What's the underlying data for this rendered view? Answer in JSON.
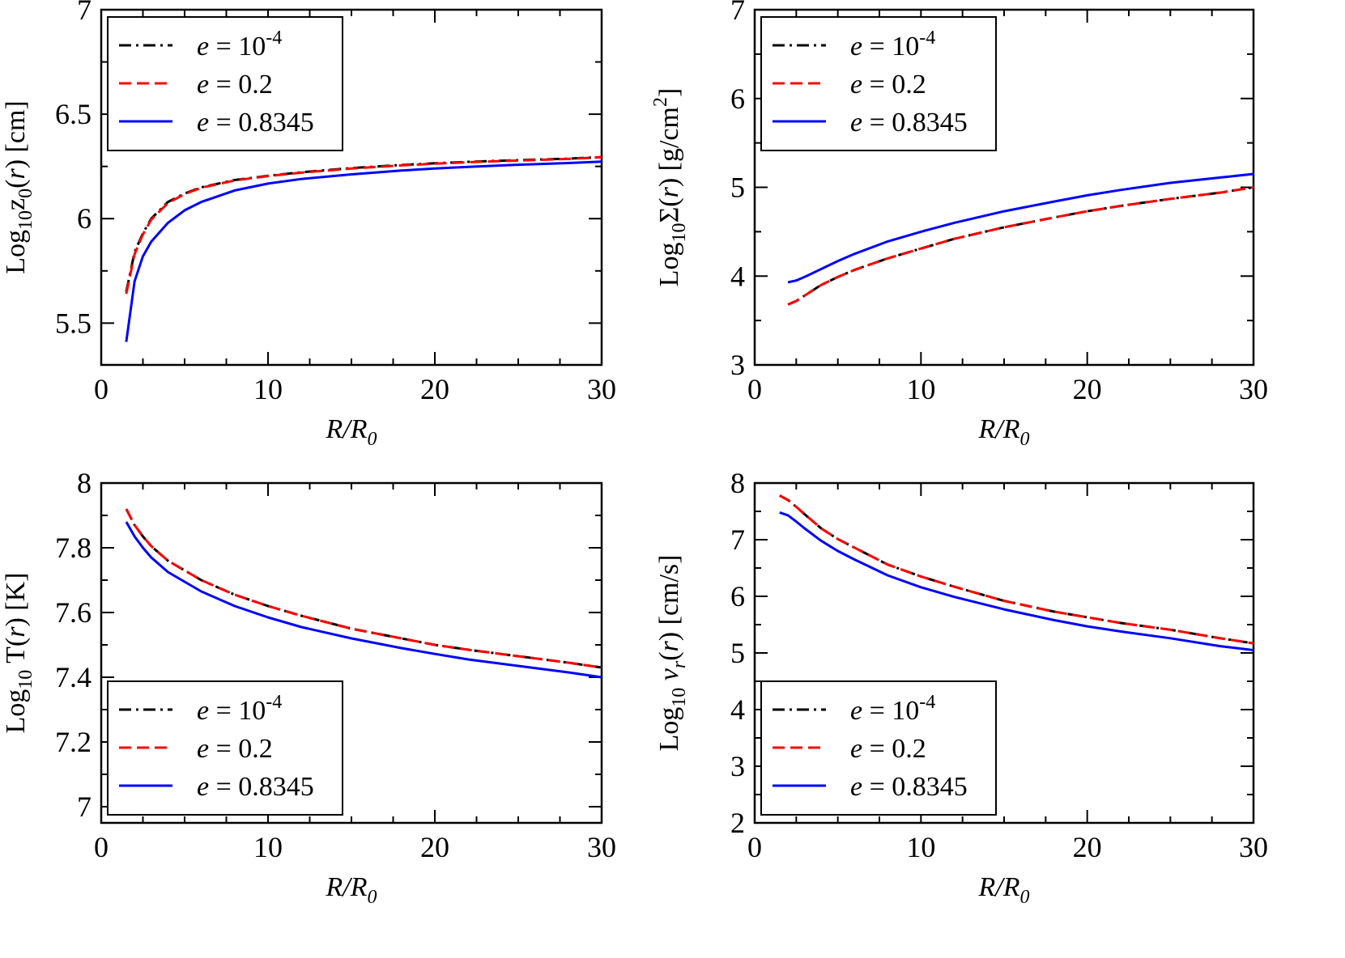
{
  "chart_data": [
    {
      "id": "z0",
      "type": "line",
      "title": "",
      "xlabel": "R/R0",
      "xlabel_parts": [
        {
          "t": "R/R",
          "style": "italic"
        },
        {
          "t": "0",
          "style": "italic-sub"
        }
      ],
      "ylabel": "Log10z0(r) [cm]",
      "ylabel_parts": [
        {
          "t": "Log"
        },
        {
          "t": "10",
          "style": "sub"
        },
        {
          "t": "z"
        },
        {
          "t": "0",
          "style": "sub"
        },
        {
          "t": "("
        },
        {
          "t": "r",
          "style": "italic"
        },
        {
          "t": ") [cm]"
        }
      ],
      "xlim": [
        0,
        30
      ],
      "ylim": [
        5.3,
        7
      ],
      "xticks": [
        0,
        10,
        20,
        30
      ],
      "xtick_labels": [
        "0",
        "10",
        "20",
        "30"
      ],
      "yticks": [
        5.5,
        6,
        6.5,
        7
      ],
      "ytick_labels": [
        "5.5",
        "6",
        "6.5",
        "7"
      ],
      "legend_position": "top-left",
      "series": [
        {
          "name": "e = 10-4",
          "legend_parts": [
            {
              "t": "e",
              "style": "italic"
            },
            {
              "t": " = 10"
            },
            {
              "t": "-4",
              "style": "sup"
            }
          ],
          "color": "#000000",
          "dash": "dashdot",
          "x": [
            1.5,
            2,
            2.5,
            3,
            4,
            5,
            6,
            8,
            10,
            12,
            15,
            18,
            20,
            22,
            25,
            28,
            30
          ],
          "y": [
            5.65,
            5.84,
            5.93,
            6.0,
            6.08,
            6.12,
            6.15,
            6.185,
            6.205,
            6.222,
            6.242,
            6.257,
            6.265,
            6.272,
            6.28,
            6.287,
            6.295
          ]
        },
        {
          "name": "e = 0.2",
          "legend_parts": [
            {
              "t": "e",
              "style": "italic"
            },
            {
              "t": " = 0.2"
            }
          ],
          "color": "#ff0000",
          "dash": "dash",
          "x": [
            1.5,
            2,
            2.5,
            3,
            4,
            5,
            6,
            8,
            10,
            12,
            15,
            18,
            20,
            22,
            25,
            28,
            30
          ],
          "y": [
            5.64,
            5.83,
            5.925,
            5.995,
            6.075,
            6.118,
            6.148,
            6.183,
            6.204,
            6.22,
            6.24,
            6.255,
            6.263,
            6.27,
            6.278,
            6.286,
            6.294
          ]
        },
        {
          "name": "e = 0.8345",
          "legend_parts": [
            {
              "t": "e",
              "style": "italic"
            },
            {
              "t": " = 0.8345"
            }
          ],
          "color": "#0000ff",
          "dash": "solid",
          "x": [
            1.5,
            2,
            2.5,
            3,
            4,
            5,
            6,
            8,
            10,
            12,
            15,
            18,
            20,
            22,
            25,
            28,
            30
          ],
          "y": [
            5.41,
            5.7,
            5.82,
            5.89,
            5.98,
            6.04,
            6.08,
            6.135,
            6.168,
            6.19,
            6.212,
            6.23,
            6.24,
            6.248,
            6.258,
            6.266,
            6.273
          ]
        }
      ]
    },
    {
      "id": "sigma",
      "type": "line",
      "title": "",
      "xlabel": "R/R0",
      "xlabel_parts": [
        {
          "t": "R/R",
          "style": "italic"
        },
        {
          "t": "0",
          "style": "italic-sub"
        }
      ],
      "ylabel": "Log10Σ(r) [g/cm2]",
      "ylabel_parts": [
        {
          "t": "Log"
        },
        {
          "t": "10",
          "style": "sub"
        },
        {
          "t": "Σ("
        },
        {
          "t": "r",
          "style": "italic"
        },
        {
          "t": ") [g/cm"
        },
        {
          "t": "2",
          "style": "sup"
        },
        {
          "t": "]"
        }
      ],
      "xlim": [
        0,
        30
      ],
      "ylim": [
        3,
        7
      ],
      "xticks": [
        0,
        10,
        20,
        30
      ],
      "xtick_labels": [
        "0",
        "10",
        "20",
        "30"
      ],
      "yticks": [
        3,
        4,
        5,
        6,
        7
      ],
      "ytick_labels": [
        "3",
        "4",
        "5",
        "6",
        "7"
      ],
      "legend_position": "top-left",
      "series": [
        {
          "name": "e = 10-4",
          "legend_parts": [
            {
              "t": "e",
              "style": "italic"
            },
            {
              "t": " = 10"
            },
            {
              "t": "-4",
              "style": "sup"
            }
          ],
          "color": "#000000",
          "dash": "dashdot",
          "x": [
            2,
            2.5,
            3,
            4,
            5,
            6,
            8,
            10,
            12,
            15,
            18,
            20,
            22,
            25,
            28,
            30
          ],
          "y": [
            3.68,
            3.72,
            3.78,
            3.9,
            3.99,
            4.07,
            4.2,
            4.31,
            4.42,
            4.55,
            4.66,
            4.73,
            4.79,
            4.87,
            4.94,
            5.0
          ]
        },
        {
          "name": "e = 0.2",
          "legend_parts": [
            {
              "t": "e",
              "style": "italic"
            },
            {
              "t": " = 0.2"
            }
          ],
          "color": "#ff0000",
          "dash": "dash",
          "x": [
            2,
            2.5,
            3,
            4,
            5,
            6,
            8,
            10,
            12,
            15,
            18,
            20,
            22,
            25,
            28,
            30
          ],
          "y": [
            3.68,
            3.72,
            3.78,
            3.9,
            3.99,
            4.07,
            4.2,
            4.31,
            4.42,
            4.55,
            4.66,
            4.73,
            4.79,
            4.87,
            4.94,
            5.0
          ]
        },
        {
          "name": "e = 0.8345",
          "legend_parts": [
            {
              "t": "e",
              "style": "italic"
            },
            {
              "t": " = 0.8345"
            }
          ],
          "color": "#0000ff",
          "dash": "solid",
          "x": [
            2,
            2.5,
            3,
            4,
            5,
            6,
            8,
            10,
            12,
            15,
            18,
            20,
            22,
            25,
            28,
            30
          ],
          "y": [
            3.93,
            3.95,
            3.99,
            4.08,
            4.17,
            4.25,
            4.39,
            4.5,
            4.6,
            4.73,
            4.84,
            4.91,
            4.97,
            5.05,
            5.11,
            5.15
          ]
        }
      ]
    },
    {
      "id": "temperature",
      "type": "line",
      "title": "",
      "xlabel": "R/R0",
      "xlabel_parts": [
        {
          "t": "R/R",
          "style": "italic"
        },
        {
          "t": "0",
          "style": "italic-sub"
        }
      ],
      "ylabel": "Log10 T(r) [K]",
      "ylabel_parts": [
        {
          "t": "Log"
        },
        {
          "t": "10",
          "style": "sub"
        },
        {
          "t": " T("
        },
        {
          "t": "r",
          "style": "italic"
        },
        {
          "t": ") [K]"
        }
      ],
      "xlim": [
        0,
        30
      ],
      "ylim": [
        6.95,
        8
      ],
      "xticks": [
        0,
        10,
        20,
        30
      ],
      "xtick_labels": [
        "0",
        "10",
        "20",
        "30"
      ],
      "yticks": [
        7,
        7.2,
        7.4,
        7.6,
        7.8,
        8
      ],
      "ytick_labels": [
        "7",
        "7.2",
        "7.4",
        "7.6",
        "7.8",
        "8"
      ],
      "legend_position": "bottom-left",
      "series": [
        {
          "name": "e = 10-4",
          "legend_parts": [
            {
              "t": "e",
              "style": "italic"
            },
            {
              "t": " = 10"
            },
            {
              "t": "-4",
              "style": "sup"
            }
          ],
          "color": "#000000",
          "dash": "dashdot",
          "x": [
            1.5,
            2,
            2.5,
            3,
            4,
            5,
            6,
            8,
            10,
            12,
            15,
            18,
            20,
            22,
            25,
            28,
            30
          ],
          "y": [
            7.92,
            7.87,
            7.835,
            7.805,
            7.76,
            7.73,
            7.7,
            7.655,
            7.62,
            7.59,
            7.55,
            7.52,
            7.5,
            7.485,
            7.465,
            7.445,
            7.43
          ]
        },
        {
          "name": "e = 0.2",
          "legend_parts": [
            {
              "t": "e",
              "style": "italic"
            },
            {
              "t": " = 0.2"
            }
          ],
          "color": "#ff0000",
          "dash": "dash",
          "x": [
            1.5,
            2,
            2.5,
            3,
            4,
            5,
            6,
            8,
            10,
            12,
            15,
            18,
            20,
            22,
            25,
            28,
            30
          ],
          "y": [
            7.92,
            7.87,
            7.835,
            7.805,
            7.76,
            7.73,
            7.7,
            7.655,
            7.62,
            7.59,
            7.55,
            7.52,
            7.5,
            7.485,
            7.465,
            7.445,
            7.43
          ]
        },
        {
          "name": "e = 0.8345",
          "legend_parts": [
            {
              "t": "e",
              "style": "italic"
            },
            {
              "t": " = 0.8345"
            }
          ],
          "color": "#0000ff",
          "dash": "solid",
          "x": [
            1.5,
            2,
            2.5,
            3,
            4,
            5,
            6,
            8,
            10,
            12,
            15,
            18,
            20,
            22,
            25,
            28,
            30
          ],
          "y": [
            7.88,
            7.835,
            7.8,
            7.77,
            7.725,
            7.695,
            7.665,
            7.62,
            7.585,
            7.555,
            7.52,
            7.49,
            7.472,
            7.455,
            7.435,
            7.415,
            7.4
          ]
        }
      ]
    },
    {
      "id": "vr",
      "type": "line",
      "title": "",
      "xlabel": "R/R0",
      "xlabel_parts": [
        {
          "t": "R/R",
          "style": "italic"
        },
        {
          "t": "0",
          "style": "italic-sub"
        }
      ],
      "ylabel": "Log10 vr(r) [cm/s]",
      "ylabel_parts": [
        {
          "t": "Log"
        },
        {
          "t": "10",
          "style": "sub"
        },
        {
          "t": " "
        },
        {
          "t": "v",
          "style": "italic"
        },
        {
          "t": "r",
          "style": "italic-sub"
        },
        {
          "t": "("
        },
        {
          "t": "r",
          "style": "italic"
        },
        {
          "t": ") [cm/s]"
        }
      ],
      "xlim": [
        0,
        30
      ],
      "ylim": [
        2,
        8
      ],
      "xticks": [
        0,
        10,
        20,
        30
      ],
      "xtick_labels": [
        "0",
        "10",
        "20",
        "30"
      ],
      "yticks": [
        2,
        3,
        4,
        5,
        6,
        7,
        8
      ],
      "ytick_labels": [
        "2",
        "3",
        "4",
        "5",
        "6",
        "7",
        "8"
      ],
      "legend_position": "bottom-left",
      "series": [
        {
          "name": "e = 10-4",
          "legend_parts": [
            {
              "t": "e",
              "style": "italic"
            },
            {
              "t": " = 10"
            },
            {
              "t": "-4",
              "style": "sup"
            }
          ],
          "color": "#000000",
          "dash": "dashdot",
          "x": [
            1.5,
            2,
            2.5,
            3,
            4,
            5,
            6,
            8,
            10,
            12,
            15,
            18,
            20,
            22,
            25,
            28,
            30
          ],
          "y": [
            7.78,
            7.7,
            7.58,
            7.45,
            7.2,
            7.01,
            6.86,
            6.56,
            6.35,
            6.17,
            5.92,
            5.73,
            5.63,
            5.53,
            5.41,
            5.26,
            5.17
          ]
        },
        {
          "name": "e = 0.2",
          "legend_parts": [
            {
              "t": "e",
              "style": "italic"
            },
            {
              "t": " = 0.2"
            }
          ],
          "color": "#ff0000",
          "dash": "dash",
          "x": [
            1.5,
            2,
            2.5,
            3,
            4,
            5,
            6,
            8,
            10,
            12,
            15,
            18,
            20,
            22,
            25,
            28,
            30
          ],
          "y": [
            7.78,
            7.7,
            7.58,
            7.45,
            7.2,
            7.01,
            6.86,
            6.56,
            6.35,
            6.17,
            5.92,
            5.73,
            5.63,
            5.53,
            5.41,
            5.26,
            5.17
          ]
        },
        {
          "name": "e = 0.8345",
          "legend_parts": [
            {
              "t": "e",
              "style": "italic"
            },
            {
              "t": " = 0.8345"
            }
          ],
          "color": "#0000ff",
          "dash": "solid",
          "x": [
            1.5,
            2,
            2.5,
            3,
            4,
            5,
            6,
            8,
            10,
            12,
            15,
            18,
            20,
            22,
            25,
            28,
            30
          ],
          "y": [
            7.48,
            7.43,
            7.32,
            7.2,
            6.98,
            6.8,
            6.65,
            6.37,
            6.16,
            5.99,
            5.77,
            5.58,
            5.47,
            5.38,
            5.26,
            5.12,
            5.05
          ]
        }
      ]
    }
  ]
}
